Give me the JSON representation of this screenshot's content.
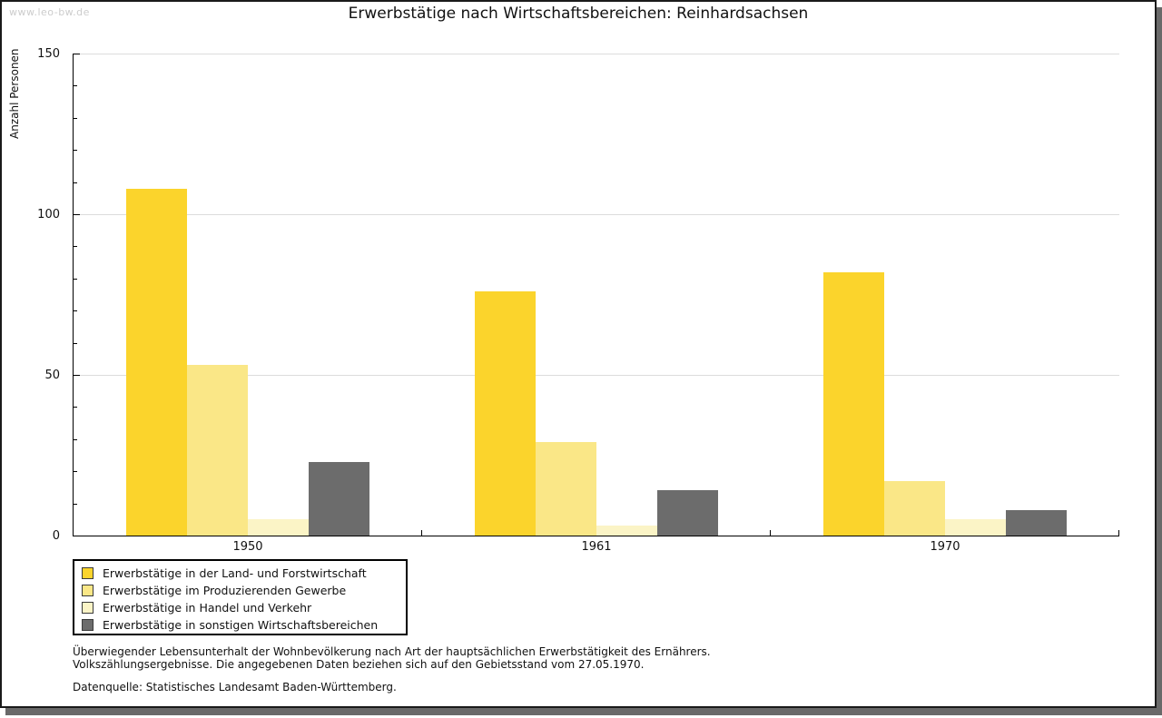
{
  "watermark": "www.leo-bw.de",
  "title": "Erwerbstätige nach Wirtschaftsbereichen: Reinhardsachsen",
  "footnote": {
    "line1": "Überwiegender Lebensunterhalt der Wohnbevölkerung nach Art der hauptsächlichen Erwerbstätigkeit des Ernährers.",
    "line2": "Volkszählungsergebnisse. Die angegebenen Daten beziehen sich auf den Gebietsstand vom 27.05.1970.",
    "source": "Datenquelle: Statistisches Landesamt Baden-Württemberg."
  },
  "colors": {
    "grid": "#dcdcdc",
    "axis": "#000000",
    "watermark": "#cccccc",
    "window_shadow": "#696969",
    "text": "#111111"
  },
  "chart_data": {
    "type": "bar",
    "title": "Erwerbstätige nach Wirtschaftsbereichen: Reinhardsachsen",
    "xlabel": "",
    "ylabel": "Anzahl Personen",
    "categories": [
      "1950",
      "1961",
      "1970"
    ],
    "series": [
      {
        "name": "Erwerbstätige in der Land- und Forstwirtschaft",
        "color": "#FBD42C",
        "values": [
          108,
          76,
          82
        ]
      },
      {
        "name": "Erwerbstätige im Produzierenden Gewerbe",
        "color": "#FAE787",
        "values": [
          53,
          29,
          17
        ]
      },
      {
        "name": "Erwerbstätige in Handel und Verkehr",
        "color": "#FBF4C6",
        "values": [
          5,
          3,
          5
        ]
      },
      {
        "name": "Erwerbstätige in sonstigen Wirtschaftsbereichen",
        "color": "#6C6C6C",
        "values": [
          23,
          14,
          8
        ]
      }
    ],
    "ylim": [
      0,
      150
    ],
    "yticks_major": [
      0,
      50,
      100,
      150
    ],
    "ytick_minor_step": 10,
    "grid": "horizontal-major",
    "legend_position": "bottom-left"
  }
}
